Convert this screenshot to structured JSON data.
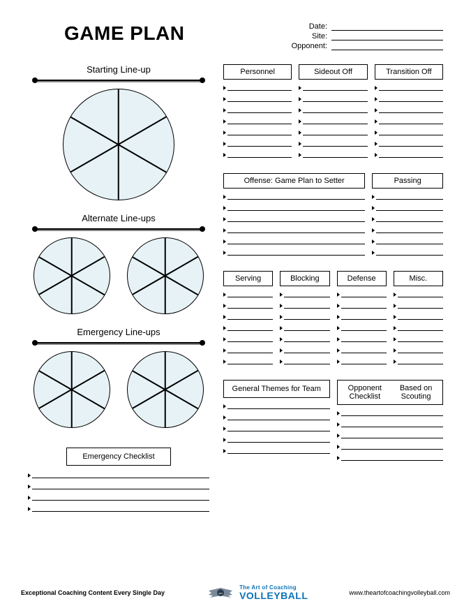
{
  "title": "GAME PLAN",
  "meta": {
    "date_label": "Date:",
    "site_label": "Site:",
    "opponent_label": "Opponent:"
  },
  "left": {
    "starting": "Starting Line-up",
    "alternate": "Alternate Line-ups",
    "emergency": "Emergency Line-ups",
    "emerg_check": "Emergency Checklist",
    "emerg_check_lines": 4
  },
  "wheel": {
    "fill": "#e6f2f5",
    "stroke": "#000000",
    "spokes": [
      30,
      90,
      150
    ]
  },
  "right": {
    "group1": {
      "cols": [
        {
          "label": "Personnel",
          "lines": 7
        },
        {
          "label": "Sideout Off",
          "lines": 7
        },
        {
          "label": "Transition Off",
          "lines": 7
        }
      ]
    },
    "group2": {
      "cols": [
        {
          "label": "Offense: Game Plan to Setter",
          "lines": 6,
          "flex": 2
        },
        {
          "label": "Passing",
          "lines": 6,
          "flex": 1
        }
      ]
    },
    "group3": {
      "cols": [
        {
          "label": "Serving",
          "lines": 7
        },
        {
          "label": "Blocking",
          "lines": 7
        },
        {
          "label": "Defense",
          "lines": 7
        },
        {
          "label": "Misc.",
          "lines": 7
        }
      ]
    },
    "group4": {
      "cols": [
        {
          "label": "General Themes for Team",
          "lines": 5,
          "h": 26
        },
        {
          "label": "Opponent Checklist Based on Scouting",
          "lines": 5,
          "h": 36
        }
      ]
    }
  },
  "footer": {
    "left": "Exceptional Coaching Content Every Single Day",
    "logo_top": "The Art of Coaching",
    "logo_bot": "VOLLEYBALL",
    "right": "www.theartofcoachingvolleyball.com"
  },
  "colors": {
    "brand_blue": "#0a73b7",
    "wing_grey": "#7a8a99"
  }
}
